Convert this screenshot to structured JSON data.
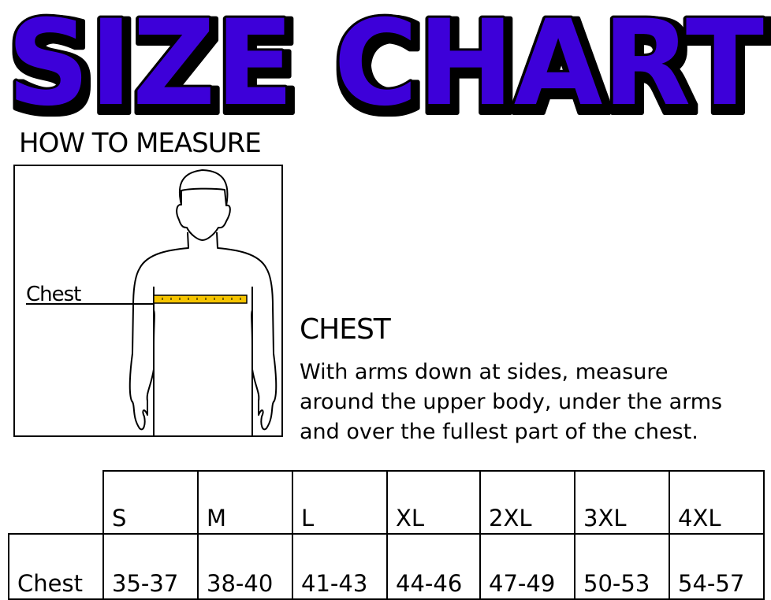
{
  "title": "SIZE CHART",
  "colors": {
    "title_fill": "#3d00d9",
    "title_outline": "#000000",
    "tape": "#f5c400"
  },
  "how_to_measure": {
    "heading": "HOW TO MEASURE",
    "figure_label": "Chest"
  },
  "chest": {
    "heading": "CHEST",
    "lines": [
      "With arms down at sides, measure",
      "around the upper body, under the arms",
      "and over the fullest part of the chest."
    ]
  },
  "table": {
    "sizes": [
      "S",
      "M",
      "L",
      "XL",
      "2XL",
      "3XL",
      "4XL"
    ],
    "row_label": "Chest",
    "values": [
      "35-37",
      "38-40",
      "41-43",
      "44-46",
      "47-49",
      "50-53",
      "54-57"
    ]
  }
}
